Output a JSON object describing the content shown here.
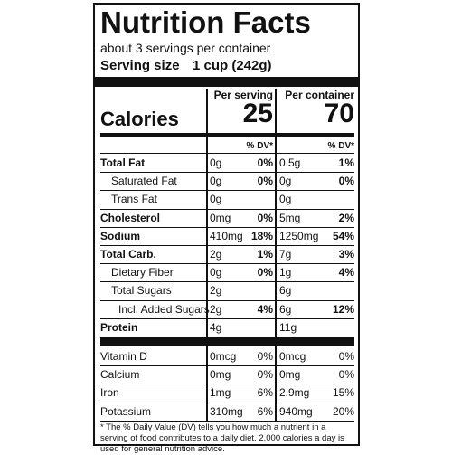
{
  "title": "Nutrition Facts",
  "servings": "about 3 servings per container",
  "serving_size": {
    "label": "Serving size",
    "value": "1 cup (242g)"
  },
  "columns": [
    "Per serving",
    "Per container"
  ],
  "calories": {
    "label": "Calories",
    "values": [
      "25",
      "70"
    ]
  },
  "dv_header": [
    "% DV*",
    "% DV*"
  ],
  "nutrients": [
    {
      "name": "Total Fat",
      "bold": true,
      "indent": 0,
      "serving": {
        "amount": "0g",
        "dv": "0%"
      },
      "container": {
        "amount": "0.5g",
        "dv": "1%"
      }
    },
    {
      "name": "Saturated Fat",
      "bold": false,
      "indent": 1,
      "serving": {
        "amount": "0g",
        "dv": "0%"
      },
      "container": {
        "amount": "0g",
        "dv": "0%"
      }
    },
    {
      "name": "Trans Fat",
      "bold": false,
      "indent": 1,
      "serving": {
        "amount": "0g"
      },
      "container": {
        "amount": "0g"
      }
    },
    {
      "name": "Cholesterol",
      "bold": true,
      "indent": 0,
      "serving": {
        "amount": "0mg",
        "dv": "0%"
      },
      "container": {
        "amount": "5mg",
        "dv": "2%"
      }
    },
    {
      "name": "Sodium",
      "bold": true,
      "indent": 0,
      "serving": {
        "amount": "410mg",
        "dv": "18%"
      },
      "container": {
        "amount": "1250mg",
        "dv": "54%"
      }
    },
    {
      "name": "Total Carb.",
      "bold": true,
      "indent": 0,
      "serving": {
        "amount": "2g",
        "dv": "1%"
      },
      "container": {
        "amount": "7g",
        "dv": "3%"
      }
    },
    {
      "name": "Dietary Fiber",
      "bold": false,
      "indent": 1,
      "serving": {
        "amount": "0g",
        "dv": "0%"
      },
      "container": {
        "amount": "1g",
        "dv": "4%"
      }
    },
    {
      "name": "Total Sugars",
      "bold": false,
      "indent": 1,
      "serving": {
        "amount": "2g"
      },
      "container": {
        "amount": "6g"
      }
    },
    {
      "name": "Incl. Added Sugars",
      "bold": false,
      "indent": 2,
      "serving": {
        "amount": "2g",
        "dv": "4%"
      },
      "container": {
        "amount": "6g",
        "dv": "12%"
      }
    },
    {
      "name": "Protein",
      "bold": true,
      "indent": 0,
      "serving": {
        "amount": "4g"
      },
      "container": {
        "amount": "11g"
      }
    }
  ],
  "vitamins": [
    {
      "name": "Vitamin D",
      "serving": {
        "amount": "0mcg",
        "dv": "0%"
      },
      "container": {
        "amount": "0mcg",
        "dv": "0%"
      }
    },
    {
      "name": "Calcium",
      "serving": {
        "amount": "0mg",
        "dv": "0%"
      },
      "container": {
        "amount": "0mg",
        "dv": "0%"
      }
    },
    {
      "name": "Iron",
      "serving": {
        "amount": "1mg",
        "dv": "6%"
      },
      "container": {
        "amount": "2.9mg",
        "dv": "15%"
      }
    },
    {
      "name": "Potassium",
      "serving": {
        "amount": "310mg",
        "dv": "6%"
      },
      "container": {
        "amount": "940mg",
        "dv": "20%"
      }
    }
  ],
  "footnote": "* The % Daily Value (DV) tells you how much a nutrient in a serving of food contributes to a daily diet. 2,000 calories a day is used for general nutrition advice."
}
